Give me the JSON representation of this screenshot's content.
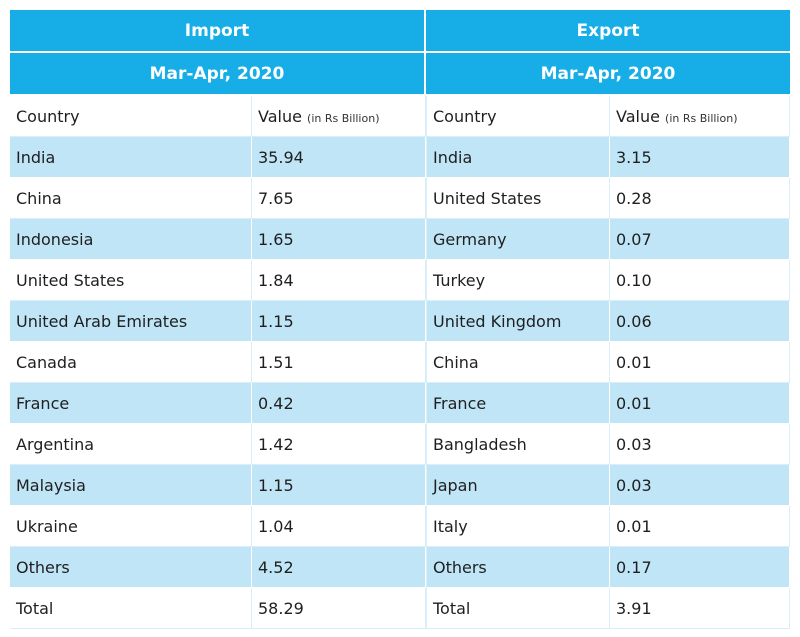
{
  "import": {
    "title": "Import",
    "period": "Mar-Apr, 2020",
    "col_country": "Country",
    "col_value": "Value",
    "col_unit": "(in Rs Billion)",
    "rows": [
      {
        "country": "India",
        "value": "35.94"
      },
      {
        "country": "China",
        "value": "7.65"
      },
      {
        "country": "Indonesia",
        "value": "1.65"
      },
      {
        "country": "United States",
        "value": "1.84"
      },
      {
        "country": "United Arab Emirates",
        "value": "1.15"
      },
      {
        "country": "Canada",
        "value": "1.51"
      },
      {
        "country": "France",
        "value": "0.42"
      },
      {
        "country": "Argentina",
        "value": "1.42"
      },
      {
        "country": "Malaysia",
        "value": "1.15"
      },
      {
        "country": "Ukraine",
        "value": "1.04"
      },
      {
        "country": "Others",
        "value": "4.52"
      },
      {
        "country": "Total",
        "value": "58.29"
      }
    ]
  },
  "export": {
    "title": "Export",
    "period": "Mar-Apr, 2020",
    "col_country": "Country",
    "col_value": "Value",
    "col_unit": "(in Rs Billion)",
    "rows": [
      {
        "country": "India",
        "value": "3.15"
      },
      {
        "country": "United States",
        "value": "0.28"
      },
      {
        "country": "Germany",
        "value": "0.07"
      },
      {
        "country": "Turkey",
        "value": "0.10"
      },
      {
        "country": "United Kingdom",
        "value": "0.06"
      },
      {
        "country": "China",
        "value": "0.01"
      },
      {
        "country": "France",
        "value": "0.01"
      },
      {
        "country": "Bangladesh",
        "value": "0.03"
      },
      {
        "country": "Japan",
        "value": "0.03"
      },
      {
        "country": "Italy",
        "value": "0.01"
      },
      {
        "country": "Others",
        "value": "0.17"
      },
      {
        "country": "Total",
        "value": "3.91"
      }
    ]
  },
  "colors": {
    "header": "#17aee8",
    "row_tint": "#bfe5f7"
  }
}
